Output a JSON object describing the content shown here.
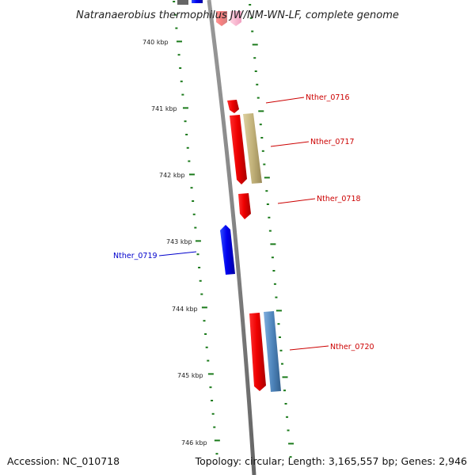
{
  "title": "Natranaerobius thermophilus JW/NM-WN-LF, complete genome",
  "footer": {
    "accession": "Accession: NC_010718",
    "summary": "Topology: circular; Length: 3,165,557 bp; Genes: 2,946"
  },
  "kbp_labels": [
    "740 kbp",
    "741 kbp",
    "742 kbp",
    "743 kbp",
    "744 kbp",
    "745 kbp",
    "746 kbp"
  ],
  "genes": [
    {
      "name": "Nther_0716",
      "color": "#cc0000"
    },
    {
      "name": "Nther_0717",
      "color": "#cc0000"
    },
    {
      "name": "Nther_0718",
      "color": "#cc0000"
    },
    {
      "name": "Nther_0719",
      "color": "#0000cc"
    },
    {
      "name": "Nther_0720",
      "color": "#cc0000"
    }
  ],
  "colors": {
    "backbone": "#808080",
    "forward_gene": "#ff0000",
    "reverse_gene": "#0000ff",
    "cog_tan": "#c8b878",
    "cog_steelblue": "#5a8ec0",
    "pink": "#ffb0c8",
    "ticks": "#1a7a1a"
  }
}
